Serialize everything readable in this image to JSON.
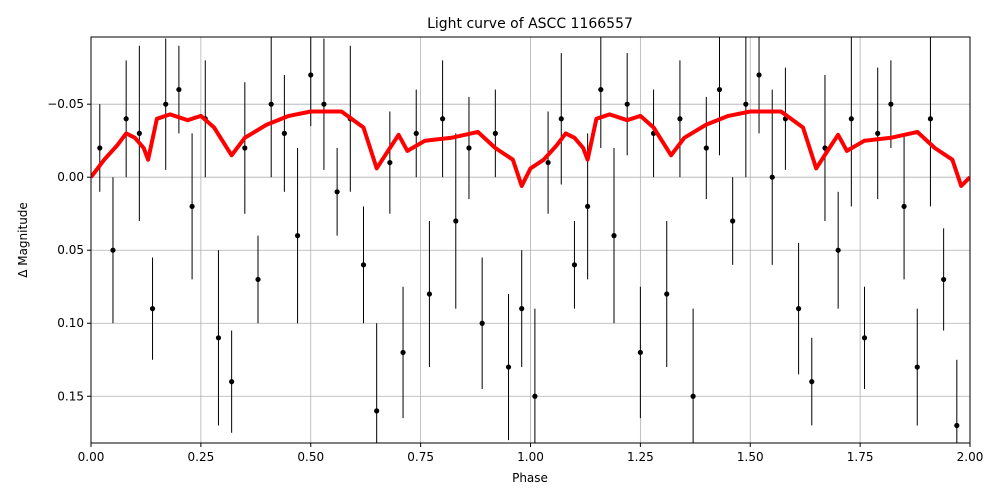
{
  "chart_data": {
    "type": "errorbar-line",
    "title": "Light curve of ASCC 1166557",
    "x_label": "Phase",
    "y_label": "Δ Magnitude",
    "xlim": [
      0,
      2
    ],
    "ylim": [
      -0.096,
      0.182
    ],
    "y_inverted": true,
    "grid": true,
    "xticks": [
      {
        "value": 0,
        "label": "0.00"
      },
      {
        "value": 0.25,
        "label": "0.25"
      },
      {
        "value": 0.5,
        "label": "0.50"
      },
      {
        "value": 0.75,
        "label": "0.75"
      },
      {
        "value": 1,
        "label": "1.00"
      },
      {
        "value": 1.25,
        "label": "1.25"
      },
      {
        "value": 1.5,
        "label": "1.50"
      },
      {
        "value": 1.75,
        "label": "1.75"
      },
      {
        "value": 2,
        "label": "2.00"
      }
    ],
    "yticks": [
      {
        "value": -0.05,
        "label": "−0.05"
      },
      {
        "value": 0,
        "label": "0.00"
      },
      {
        "value": 0.05,
        "label": "0.05"
      },
      {
        "value": 0.1,
        "label": "0.10"
      },
      {
        "value": 0.15,
        "label": "0.15"
      }
    ],
    "points": {
      "color": "#000000",
      "x": [
        0.02,
        0.05,
        0.08,
        0.11,
        0.14,
        0.17,
        0.2,
        0.23,
        0.26,
        0.29,
        0.32,
        0.35,
        0.38,
        0.41,
        0.44,
        0.47,
        0.5,
        0.53,
        0.56,
        0.59,
        0.62,
        0.65,
        0.68,
        0.71,
        0.74,
        0.77,
        0.8,
        0.83,
        0.86,
        0.89,
        0.92,
        0.95,
        0.98,
        1.01,
        1.04,
        1.07,
        1.1,
        1.13,
        1.16,
        1.19,
        1.22,
        1.25,
        1.28,
        1.31,
        1.34,
        1.37,
        1.4,
        1.43,
        1.46,
        1.49,
        1.52,
        1.55,
        1.58,
        1.61,
        1.64,
        1.67,
        1.7,
        1.73,
        1.76,
        1.79,
        1.82,
        1.85,
        1.88,
        1.91,
        1.94,
        1.97
      ],
      "values": [
        -0.02,
        0.05,
        -0.04,
        -0.03,
        0.09,
        -0.05,
        -0.06,
        0.02,
        -0.04,
        0.11,
        0.14,
        -0.02,
        0.07,
        -0.05,
        -0.03,
        0.04,
        -0.07,
        -0.05,
        0.01,
        -0.04,
        0.06,
        0.16,
        -0.01,
        0.12,
        -0.03,
        0.08,
        -0.04,
        0.03,
        -0.02,
        0.1,
        -0.03,
        0.13,
        0.09,
        0.15,
        -0.01,
        -0.04,
        0.06,
        0.02,
        -0.06,
        0.04,
        -0.05,
        0.12,
        -0.03,
        0.08,
        -0.04,
        0.15,
        -0.02,
        -0.06,
        0.03,
        -0.05,
        -0.07,
        0,
        -0.04,
        0.09,
        0.14,
        -0.02,
        0.05,
        -0.04,
        0.11,
        -0.03,
        -0.05,
        0.02,
        0.13,
        -0.04,
        0.07,
        0.17
      ],
      "errors": [
        0.03,
        0.05,
        0.04,
        0.06,
        0.035,
        0.045,
        0.03,
        0.05,
        0.04,
        0.06,
        0.035,
        0.045,
        0.03,
        0.05,
        0.04,
        0.06,
        0.035,
        0.045,
        0.03,
        0.05,
        0.04,
        0.06,
        0.035,
        0.045,
        0.03,
        0.05,
        0.04,
        0.06,
        0.035,
        0.045,
        0.03,
        0.05,
        0.04,
        0.06,
        0.035,
        0.045,
        0.03,
        0.05,
        0.04,
        0.06,
        0.035,
        0.045,
        0.03,
        0.05,
        0.04,
        0.06,
        0.035,
        0.045,
        0.03,
        0.05,
        0.04,
        0.06,
        0.035,
        0.045,
        0.03,
        0.05,
        0.04,
        0.06,
        0.035,
        0.045,
        0.03,
        0.05,
        0.04,
        0.06,
        0.035,
        0.045
      ]
    },
    "trend": {
      "color": "#ff0000",
      "x": [
        0,
        0.03,
        0.06,
        0.08,
        0.1,
        0.12,
        0.13,
        0.15,
        0.18,
        0.22,
        0.25,
        0.28,
        0.32,
        0.35,
        0.4,
        0.45,
        0.5,
        0.57,
        0.62,
        0.65,
        0.68,
        0.7,
        0.72,
        0.76,
        0.82,
        0.88,
        0.92,
        0.96,
        0.98,
        1,
        1.03,
        1.06,
        1.08,
        1.1,
        1.12,
        1.13,
        1.15,
        1.18,
        1.22,
        1.25,
        1.28,
        1.32,
        1.35,
        1.4,
        1.45,
        1.5,
        1.57,
        1.62,
        1.65,
        1.68,
        1.7,
        1.72,
        1.76,
        1.82,
        1.88,
        1.92,
        1.96,
        1.98,
        2
      ],
      "values": [
        0,
        -0.012,
        -0.022,
        -0.03,
        -0.027,
        -0.02,
        -0.012,
        -0.04,
        -0.043,
        -0.039,
        -0.042,
        -0.034,
        -0.015,
        -0.027,
        -0.036,
        -0.042,
        -0.045,
        -0.045,
        -0.034,
        -0.006,
        -0.02,
        -0.029,
        -0.018,
        -0.025,
        -0.027,
        -0.031,
        -0.02,
        -0.012,
        0.006,
        -0.006,
        -0.012,
        -0.022,
        -0.03,
        -0.027,
        -0.02,
        -0.012,
        -0.04,
        -0.043,
        -0.039,
        -0.042,
        -0.034,
        -0.015,
        -0.027,
        -0.036,
        -0.042,
        -0.045,
        -0.045,
        -0.034,
        -0.006,
        -0.02,
        -0.029,
        -0.018,
        -0.025,
        -0.027,
        -0.031,
        -0.02,
        -0.012,
        0.006,
        0
      ]
    }
  }
}
